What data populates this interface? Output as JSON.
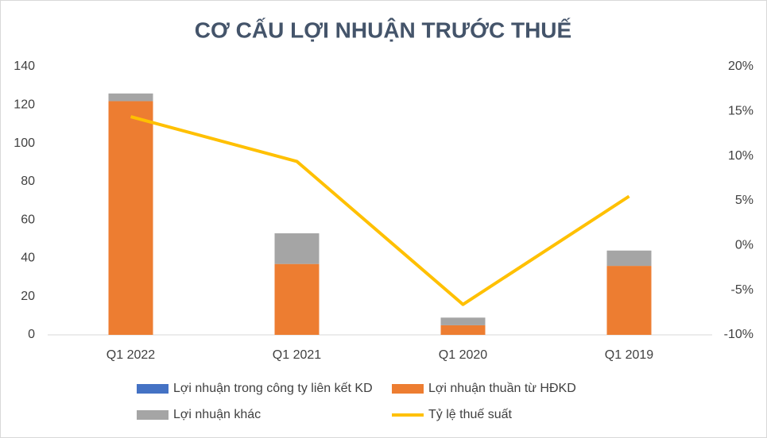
{
  "chart_data": {
    "type": "bar-line",
    "title": "CƠ CẤU LỢI NHUẬN TRƯỚC THUẾ",
    "categories": [
      "Q1 2022",
      "Q1 2021",
      "Q1 2020",
      "Q1 2019"
    ],
    "series": [
      {
        "name": "Lợi nhuận trong công ty liên kết KD",
        "color": "#4472c4",
        "type": "bar",
        "values": [
          0,
          0,
          0,
          0
        ]
      },
      {
        "name": "Lợi nhuận thuần từ HĐKD",
        "color": "#ed7d31",
        "type": "bar",
        "values": [
          122,
          37,
          5,
          36
        ]
      },
      {
        "name": "Lợi nhuận khác",
        "color": "#a5a5a5",
        "type": "bar",
        "values": [
          4,
          16,
          4,
          8
        ]
      },
      {
        "name": "Tỷ lệ thuế suất",
        "color": "#ffc000",
        "type": "line",
        "axis": "y2",
        "values": [
          14.4,
          9.4,
          -6.6,
          5.5
        ]
      }
    ],
    "ylim": [
      0,
      140
    ],
    "yticks": [
      0,
      20,
      40,
      60,
      80,
      100,
      120,
      140
    ],
    "y2lim": [
      -10,
      20
    ],
    "y2ticks": [
      {
        "value": -10,
        "label": "-10%"
      },
      {
        "value": -5,
        "label": "-5%"
      },
      {
        "value": 0,
        "label": "0%"
      },
      {
        "value": 5,
        "label": "5%"
      },
      {
        "value": 10,
        "label": "10%"
      },
      {
        "value": 15,
        "label": "15%"
      },
      {
        "value": 20,
        "label": "20%"
      }
    ],
    "grid": false,
    "legend": "bottom"
  }
}
